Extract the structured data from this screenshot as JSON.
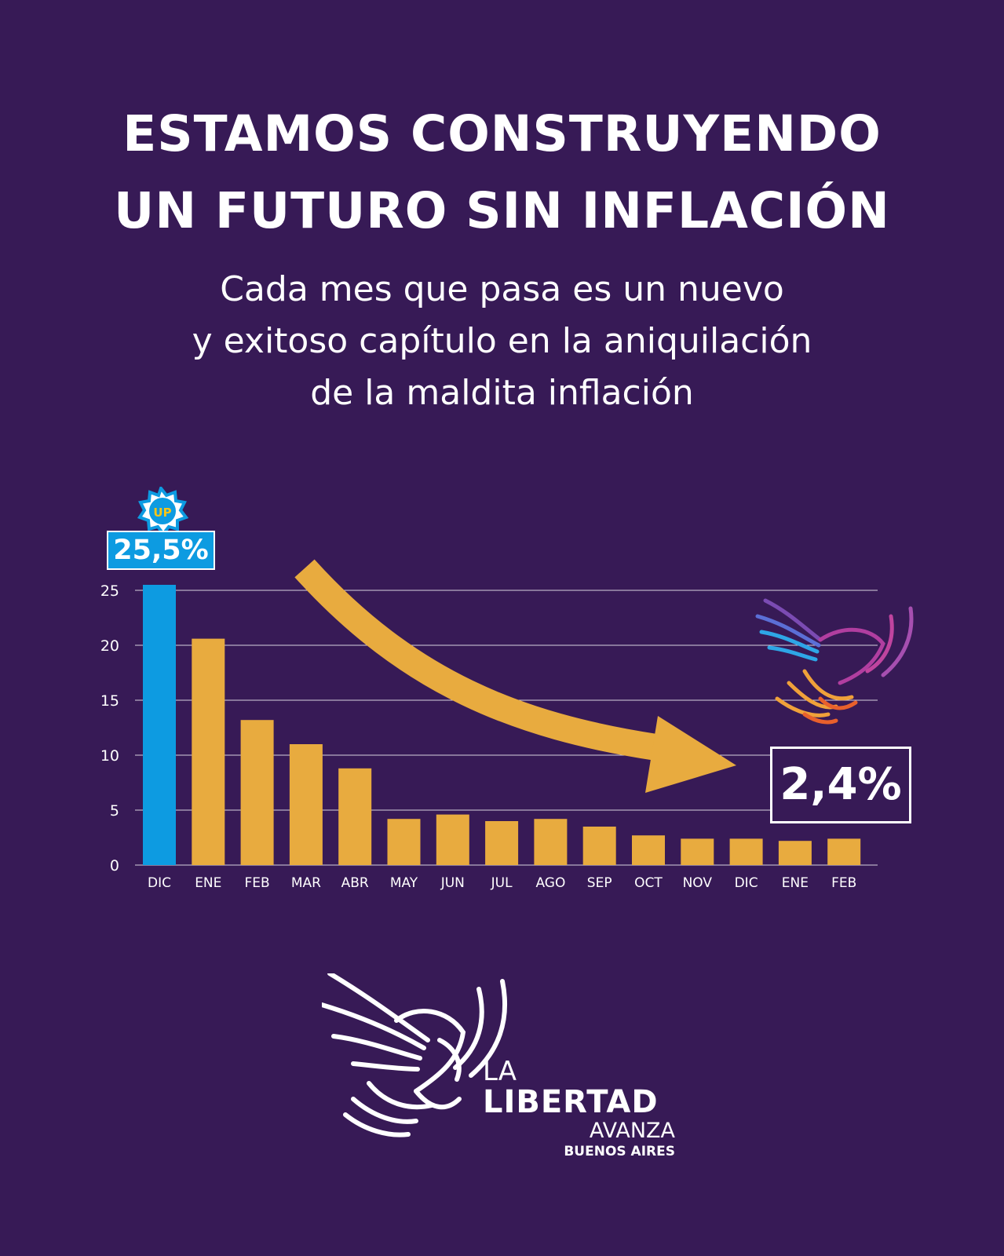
{
  "headline": {
    "line1": "ESTAMOS CONSTRUYENDO",
    "line2": "UN FUTURO SIN INFLACIÓN"
  },
  "subtitle": {
    "line1": "Cada mes que pasa es un nuevo",
    "line2": "y exitoso capítulo en la aniquilación",
    "line3": "de la maldita inflación"
  },
  "badge": {
    "text": "UP"
  },
  "callouts": {
    "start": "25,5%",
    "end": "2,4%"
  },
  "brand": {
    "la": "LA",
    "libertad": "LIBERTAD",
    "avanza": "AVANZA",
    "region": "BUENOS AIRES"
  },
  "colors": {
    "background": "#371a56",
    "highlight_bar": "#0d9be1",
    "bar": "#e8ab3f",
    "arrow": "#e8ab3f",
    "text": "#ffffff"
  },
  "chart_data": {
    "type": "bar",
    "categories": [
      "DIC",
      "ENE",
      "FEB",
      "MAR",
      "ABR",
      "MAY",
      "JUN",
      "JUL",
      "AGO",
      "SEP",
      "OCT",
      "NOV",
      "DIC",
      "ENE",
      "FEB"
    ],
    "values": [
      25.5,
      20.6,
      13.2,
      11.0,
      8.8,
      4.2,
      4.6,
      4.0,
      4.2,
      3.5,
      2.7,
      2.4,
      2.4,
      2.2,
      2.4
    ],
    "highlight_index": 0,
    "ylim": [
      0,
      25
    ],
    "yticks": [
      "0",
      "5",
      "10",
      "15",
      "20",
      "25"
    ],
    "grid": true,
    "title": "",
    "xlabel": "",
    "ylabel": ""
  }
}
